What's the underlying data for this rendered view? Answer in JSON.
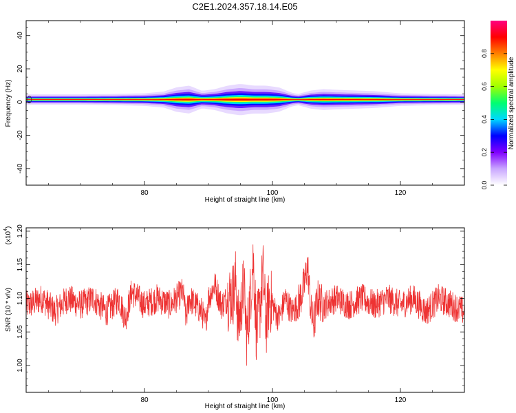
{
  "title": "C2E1.2024.357.18.14.E05",
  "chart_data": [
    {
      "type": "heatmap",
      "title": "C2E1.2024.357.18.14.E05",
      "xlabel": "Height of straight line (km)",
      "ylabel": "Frequency (Hz)",
      "xlim": [
        61.5,
        130
      ],
      "ylim": [
        -50,
        49
      ],
      "xticks": [
        80,
        100,
        120
      ],
      "yticks": [
        40,
        20,
        0,
        -20,
        -40
      ],
      "band_center_hz": 1.5,
      "colorbar": {
        "label": "Normalized spectral amplitude",
        "range": [
          0,
          1
        ],
        "ticks": [
          "0.0",
          "0.2",
          "0.4",
          "0.6",
          "0.8"
        ],
        "colors": [
          "#ffffff",
          "#c9a6ff",
          "#8000ff",
          "#0000ff",
          "#00d8ff",
          "#00ff70",
          "#a0ff00",
          "#ffff00",
          "#ff8000",
          "#ff0000",
          "#ff0080"
        ]
      },
      "envelope": {
        "heights_km": [
          62,
          70,
          75,
          80,
          83,
          85,
          87,
          89,
          91,
          93,
          95,
          97,
          99,
          101,
          103,
          104,
          106,
          108,
          110,
          113,
          116,
          120,
          125,
          130
        ],
        "halfwidth_hz": [
          1.5,
          1.5,
          1.6,
          1.8,
          2.3,
          3.5,
          4.0,
          2.5,
          3.0,
          4.0,
          4.5,
          4.0,
          4.0,
          3.5,
          2.0,
          1.6,
          2.6,
          3.0,
          2.8,
          2.6,
          2.4,
          1.8,
          1.6,
          1.5
        ]
      }
    },
    {
      "type": "line",
      "xlabel": "Height of straight line (km)",
      "ylabel": "SNR (10 * v/v)",
      "y_multiplier": "(x10",
      "y_multiplier_exp": "4",
      "xlim": [
        61.5,
        130
      ],
      "ylim": [
        0.96,
        1.205
      ],
      "xticks": [
        80,
        100,
        120
      ],
      "yticks": [
        "1.00",
        "1.05",
        "1.10",
        "1.15",
        "1.20"
      ],
      "color": "#ee3333",
      "series": [
        {
          "x": [
            62,
            64,
            66,
            68,
            70,
            72,
            74,
            76,
            77,
            78,
            80,
            82,
            84,
            86,
            86.5,
            87,
            88,
            89,
            89.5,
            90,
            91,
            92,
            93,
            94,
            94.3,
            94.6,
            95,
            95.5,
            96,
            96.5,
            97,
            97.5,
            98,
            98.5,
            99,
            99.5,
            100,
            101,
            102,
            103,
            104,
            105,
            105.5,
            106,
            106.5,
            107,
            108,
            110,
            112,
            114,
            116,
            118,
            120,
            122,
            124,
            126,
            128,
            130
          ],
          "y": [
            1.09,
            1.1,
            1.08,
            1.1,
            1.09,
            1.1,
            1.08,
            1.1,
            1.07,
            1.11,
            1.09,
            1.1,
            1.09,
            1.11,
            1.07,
            1.1,
            1.09,
            1.08,
            1.06,
            1.1,
            1.12,
            1.09,
            1.1,
            1.11,
            1.13,
            1.06,
            1.08,
            1.12,
            1.04,
            1.1,
            1.16,
            1.05,
            1.08,
            1.14,
            1.06,
            1.1,
            1.09,
            1.07,
            1.1,
            1.08,
            1.09,
            1.12,
            1.15,
            1.08,
            1.06,
            1.1,
            1.09,
            1.1,
            1.09,
            1.1,
            1.09,
            1.1,
            1.09,
            1.1,
            1.08,
            1.1,
            1.09,
            1.08
          ]
        }
      ]
    }
  ]
}
